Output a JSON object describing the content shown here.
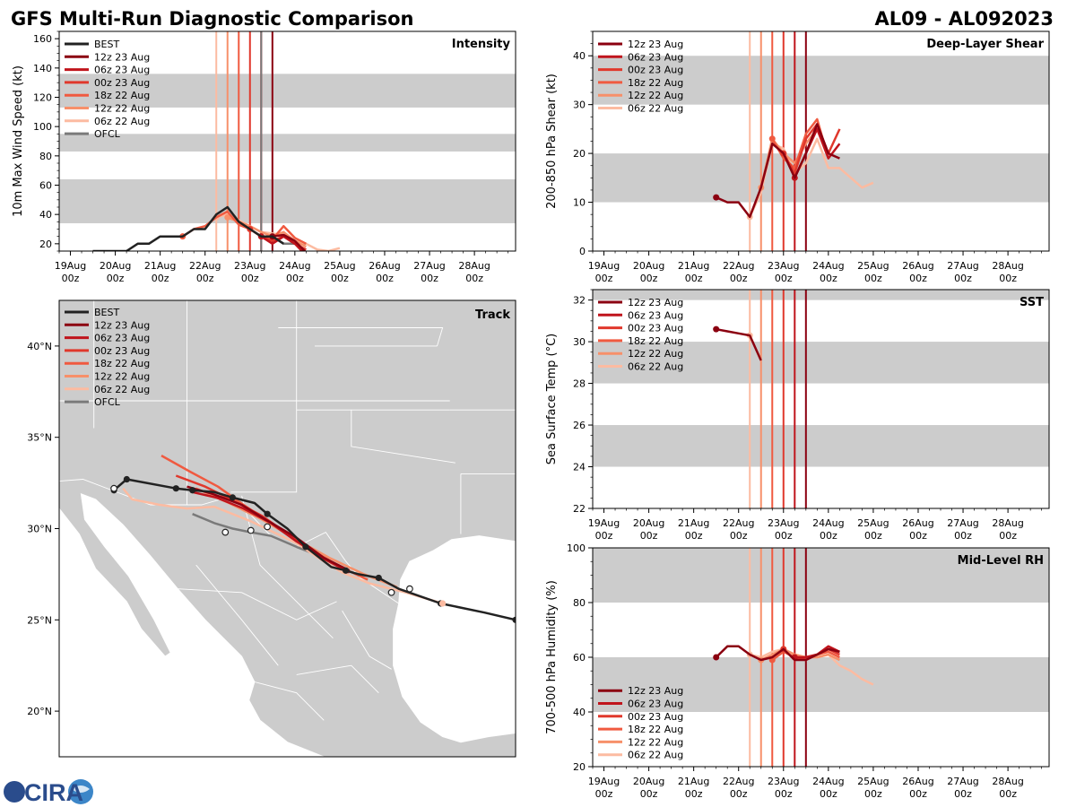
{
  "header": {
    "title": "GFS Multi-Run Diagnostic Comparison",
    "storm": "AL09 - AL092023"
  },
  "logo": {
    "text": "CIRA"
  },
  "colors": {
    "BEST": "#222222",
    "12z 23 Aug": "#8b0010",
    "06z 23 Aug": "#c0141c",
    "00z 23 Aug": "#e0382c",
    "18z 22 Aug": "#f05a40",
    "12z 22 Aug": "#f7906a",
    "06z 22 Aug": "#fcbba1",
    "OFCL": "#7a7a7a",
    "band": "#cccccc",
    "land": "#cccccc",
    "water": "#ffffff"
  },
  "time_axis": {
    "tick_labels": [
      [
        "19Aug",
        "00z"
      ],
      [
        "20Aug",
        "00z"
      ],
      [
        "21Aug",
        "00z"
      ],
      [
        "22Aug",
        "00z"
      ],
      [
        "23Aug",
        "00z"
      ],
      [
        "24Aug",
        "00z"
      ],
      [
        "25Aug",
        "00z"
      ],
      [
        "26Aug",
        "00z"
      ],
      [
        "27Aug",
        "00z"
      ],
      [
        "28Aug",
        "00z"
      ]
    ],
    "range_hours": [
      -6,
      238
    ],
    "init_times": [
      {
        "run": "06z 22 Aug",
        "hour": 78
      },
      {
        "run": "12z 22 Aug",
        "hour": 84
      },
      {
        "run": "18z 22 Aug",
        "hour": 90
      },
      {
        "run": "00z 23 Aug",
        "hour": 96
      },
      {
        "run": "06z 23 Aug",
        "hour": 102
      },
      {
        "run": "12z 23 Aug",
        "hour": 108
      }
    ],
    "ofcl_init_hour": 102
  },
  "chart_data": [
    {
      "id": "intensity",
      "type": "line",
      "title": "Intensity",
      "ylabel": "10m Max Wind Speed (kt)",
      "ylim": [
        15,
        165
      ],
      "yticks": [
        20,
        40,
        60,
        80,
        100,
        120,
        140,
        160
      ],
      "bands": [
        [
          34,
          64
        ],
        [
          83,
          95
        ],
        [
          113,
          136
        ]
      ],
      "legend": [
        "BEST",
        "12z 23 Aug",
        "06z 23 Aug",
        "00z 23 Aug",
        "18z 22 Aug",
        "12z 22 Aug",
        "06z 22 Aug",
        "OFCL"
      ],
      "series": [
        {
          "name": "BEST",
          "x": [
            12,
            18,
            24,
            30,
            36,
            42,
            48,
            54,
            60,
            66,
            72,
            78,
            84,
            90,
            96,
            102,
            108,
            114
          ],
          "y": [
            15,
            15,
            15,
            15,
            20,
            20,
            25,
            25,
            25,
            30,
            30,
            40,
            45,
            35,
            30,
            25,
            25,
            20
          ]
        },
        {
          "name": "12z 23 Aug",
          "x": [
            108,
            114,
            120,
            126
          ],
          "y": [
            25,
            26,
            22,
            14
          ]
        },
        {
          "name": "06z 23 Aug",
          "x": [
            102,
            108,
            114,
            120,
            126
          ],
          "y": [
            25,
            20,
            25,
            20,
            12
          ]
        },
        {
          "name": "00z 23 Aug",
          "x": [
            96,
            102,
            108,
            114,
            120,
            126
          ],
          "y": [
            30,
            25,
            22,
            25,
            20,
            16
          ]
        },
        {
          "name": "18z 22 Aug",
          "x": [
            60,
            66,
            72,
            78,
            84,
            90,
            96,
            102,
            108,
            114,
            120,
            126
          ],
          "y": [
            25,
            30,
            32,
            38,
            42,
            33,
            30,
            25,
            23,
            32,
            24,
            20
          ]
        },
        {
          "name": "12z 22 Aug",
          "x": [
            84,
            90,
            96,
            102,
            108,
            114,
            120,
            126
          ],
          "y": [
            38,
            35,
            32,
            28,
            25,
            28,
            22,
            18
          ]
        },
        {
          "name": "06z 22 Aug",
          "x": [
            78,
            84,
            90,
            96,
            102,
            108,
            114,
            120,
            126,
            132,
            138,
            144
          ],
          "y": [
            38,
            40,
            36,
            32,
            28,
            27,
            26,
            22,
            20,
            16,
            15,
            17
          ]
        },
        {
          "name": "OFCL",
          "x": [
            102,
            108,
            114,
            120,
            126
          ],
          "y": [
            25,
            25,
            20,
            20,
            20
          ]
        }
      ]
    },
    {
      "id": "shear",
      "type": "line",
      "title": "Deep-Layer Shear",
      "ylabel": "200-850 hPa Shear (kt)",
      "ylim": [
        0,
        45
      ],
      "yticks": [
        0,
        10,
        20,
        30,
        40
      ],
      "bands": [
        [
          10,
          20
        ],
        [
          30,
          40
        ]
      ],
      "legend": [
        "12z 23 Aug",
        "06z 23 Aug",
        "00z 23 Aug",
        "18z 22 Aug",
        "12z 22 Aug",
        "06z 22 Aug"
      ],
      "series": [
        {
          "name": "12z 23 Aug",
          "x": [
            60,
            66,
            72,
            78,
            84,
            90,
            96,
            102,
            108,
            114,
            120,
            126
          ],
          "y": [
            11,
            10,
            10,
            7,
            13,
            22,
            20,
            15,
            20,
            26,
            20,
            19
          ]
        },
        {
          "name": "06z 23 Aug",
          "x": [
            102,
            108,
            114,
            120,
            126
          ],
          "y": [
            15,
            20,
            25,
            19,
            22
          ]
        },
        {
          "name": "00z 23 Aug",
          "x": [
            96,
            102,
            108,
            114,
            120,
            126
          ],
          "y": [
            20,
            16,
            23,
            26,
            20,
            25
          ]
        },
        {
          "name": "18z 22 Aug",
          "x": [
            90,
            96,
            102,
            108,
            114,
            120
          ],
          "y": [
            23,
            19,
            17,
            24,
            27,
            19
          ]
        },
        {
          "name": "12z 22 Aug",
          "x": [
            84,
            90,
            96,
            102,
            108,
            114,
            120
          ],
          "y": [
            13,
            23,
            20,
            18,
            22,
            25,
            20
          ]
        },
        {
          "name": "06z 22 Aug",
          "x": [
            78,
            84,
            90,
            96,
            102,
            108,
            114,
            120,
            126,
            132,
            138,
            144
          ],
          "y": [
            7,
            12,
            22,
            21,
            16,
            18,
            23,
            17,
            17,
            15,
            13,
            14
          ]
        }
      ]
    },
    {
      "id": "sst",
      "type": "line",
      "title": "SST",
      "ylabel": "Sea Surface Temp (°C)",
      "ylim": [
        22,
        32.5
      ],
      "yticks": [
        22,
        24,
        26,
        28,
        30,
        32
      ],
      "bands": [
        [
          24,
          26
        ],
        [
          28,
          30
        ],
        [
          32,
          33
        ]
      ],
      "legend": [
        "12z 23 Aug",
        "06z 23 Aug",
        "00z 23 Aug",
        "18z 22 Aug",
        "12z 22 Aug",
        "06z 22 Aug"
      ],
      "series": [
        {
          "name": "12z 23 Aug",
          "x": [
            60,
            66,
            72,
            78,
            84
          ],
          "y": [
            30.6,
            30.5,
            30.4,
            30.3,
            29.1
          ]
        },
        {
          "name": "06z 22 Aug",
          "x": [
            78,
            84
          ],
          "y": [
            30.3,
            29.1
          ]
        }
      ]
    },
    {
      "id": "rh",
      "type": "line",
      "title": "Mid-Level RH",
      "ylabel": "700-500 hPa Humidity (%)",
      "ylim": [
        20,
        100
      ],
      "yticks": [
        20,
        40,
        60,
        80,
        100
      ],
      "bands": [
        [
          40,
          60
        ],
        [
          80,
          100
        ]
      ],
      "legend": [
        "12z 23 Aug",
        "06z 23 Aug",
        "00z 23 Aug",
        "18z 22 Aug",
        "12z 22 Aug",
        "06z 22 Aug"
      ],
      "series": [
        {
          "name": "12z 23 Aug",
          "x": [
            60,
            66,
            72,
            78,
            84,
            90,
            96,
            102,
            108,
            114,
            120,
            126
          ],
          "y": [
            60,
            64,
            64,
            61,
            59,
            60,
            63,
            59,
            59,
            61,
            63,
            62
          ]
        },
        {
          "name": "06z 23 Aug",
          "x": [
            102,
            108,
            114,
            120,
            126
          ],
          "y": [
            60,
            60,
            61,
            64,
            62
          ]
        },
        {
          "name": "00z 23 Aug",
          "x": [
            96,
            102,
            108,
            114,
            120,
            126
          ],
          "y": [
            63,
            59,
            60,
            61,
            63,
            61
          ]
        },
        {
          "name": "18z 22 Aug",
          "x": [
            90,
            96,
            102,
            108,
            114,
            120,
            126
          ],
          "y": [
            59,
            62,
            60,
            59,
            61,
            62,
            60
          ]
        },
        {
          "name": "12z 22 Aug",
          "x": [
            84,
            90,
            96,
            102,
            108,
            114,
            120,
            126
          ],
          "y": [
            59,
            61,
            63,
            61,
            60,
            60,
            61,
            59
          ]
        },
        {
          "name": "06z 22 Aug",
          "x": [
            78,
            84,
            90,
            96,
            102,
            108,
            114,
            120,
            126,
            132,
            138,
            144
          ],
          "y": [
            61,
            60,
            62,
            63,
            61,
            60,
            60,
            61,
            57,
            55,
            52,
            50
          ]
        }
      ]
    },
    {
      "id": "track",
      "type": "line",
      "title": "Track",
      "lon_range": [
        -116,
        -91
      ],
      "lat_range": [
        17.5,
        42.5
      ],
      "yticks": [
        20,
        25,
        30,
        35,
        40
      ],
      "ytick_labels": [
        "20°N",
        "25°N",
        "30°N",
        "35°N",
        "40°N"
      ],
      "legend": [
        "BEST",
        "12z 23 Aug",
        "06z 23 Aug",
        "00z 23 Aug",
        "18z 22 Aug",
        "12z 22 Aug",
        "06z 22 Aug",
        "OFCL"
      ],
      "series": [
        {
          "name": "BEST",
          "lon": [
            -91.0,
            -92.7,
            -95.1,
            -97.4,
            -98.5,
            -99.6,
            -100.3,
            -101.1,
            -102.5,
            -103.5,
            -104.6,
            -105.3,
            -106.5,
            -107.5,
            -108.7,
            -109.6,
            -112.3,
            -113.0
          ],
          "lat": [
            25.0,
            25.4,
            25.9,
            26.7,
            27.3,
            27.5,
            27.7,
            27.9,
            29.0,
            30.0,
            30.8,
            31.4,
            31.7,
            32.0,
            32.1,
            32.2,
            32.7,
            32.1
          ]
        },
        {
          "name": "12z 23 Aug",
          "lon": [
            -100.1,
            -101.5,
            -103.0,
            -104.7,
            -106.0,
            -107.6,
            -109.0
          ],
          "lat": [
            27.7,
            28.4,
            29.5,
            30.5,
            31.3,
            31.9,
            32.3
          ]
        },
        {
          "name": "06z 23 Aug",
          "lon": [
            -100.1,
            -101.4,
            -103.0,
            -104.4,
            -105.9,
            -107.4,
            -108.7
          ],
          "lat": [
            27.6,
            28.3,
            29.3,
            30.3,
            31.1,
            31.7,
            32.0
          ]
        },
        {
          "name": "00z 23 Aug",
          "lon": [
            -100.1,
            -101.6,
            -103.2,
            -104.9,
            -106.6,
            -108.0,
            -109.6
          ],
          "lat": [
            27.6,
            28.4,
            29.5,
            30.7,
            31.6,
            32.3,
            32.9
          ]
        },
        {
          "name": "18z 22 Aug",
          "lon": [
            -99.1,
            -100.6,
            -102.3,
            -104.1,
            -105.9,
            -107.3,
            -108.8,
            -110.4
          ],
          "lat": [
            27.2,
            27.9,
            28.9,
            30.1,
            31.3,
            32.3,
            33.1,
            34.0
          ]
        },
        {
          "name": "12z 22 Aug",
          "lon": [
            -97.5,
            -99.3,
            -101.2,
            -103.0,
            -104.9,
            -106.7,
            -108.5
          ],
          "lat": [
            26.8,
            27.5,
            28.4,
            29.4,
            30.5,
            31.4,
            32.2
          ]
        },
        {
          "name": "06z 22 Aug",
          "lon": [
            -95.0,
            -97.0,
            -99.0,
            -100.5,
            -101.5,
            -103.0,
            -105.5,
            -107.5,
            -109.0,
            -110.5,
            -112.0,
            -112.5
          ],
          "lat": [
            25.9,
            26.5,
            27.0,
            27.6,
            28.2,
            29.2,
            30.4,
            31.2,
            31.1,
            31.3,
            31.6,
            32.2
          ]
        },
        {
          "name": "OFCL",
          "lon": [
            -101.2,
            -103.0,
            -104.4,
            -105.5,
            -106.5,
            -107.5,
            -108.7
          ],
          "lat": [
            28.3,
            29.0,
            29.6,
            29.8,
            30.0,
            30.3,
            30.8
          ]
        }
      ]
    }
  ]
}
